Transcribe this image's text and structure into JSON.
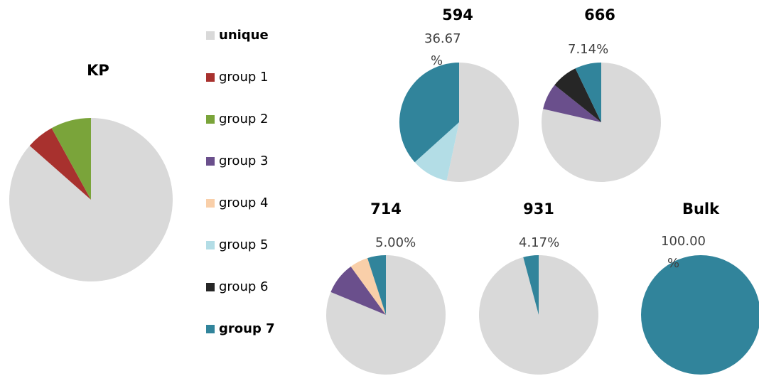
{
  "chart_data": [
    {
      "type": "pie",
      "title": "KP",
      "categories": [
        "unique",
        "group 1",
        "group 2",
        "group 3",
        "group 4",
        "group 5",
        "group 6",
        "group 7"
      ],
      "colors": [
        "#d9d9d9",
        "#a8312e",
        "#7aa43a",
        "#6a4f8c",
        "#f9cfa9",
        "#b3dde6",
        "#262626",
        "#31849b"
      ],
      "values": [
        86.5,
        5.5,
        8,
        0,
        0,
        0,
        0,
        0
      ],
      "value_labels": [
        null,
        null,
        null,
        null,
        null,
        null,
        null,
        null
      ]
    },
    {
      "type": "pie",
      "title": "594",
      "categories": [
        "unique",
        "group 1",
        "group 2",
        "group 3",
        "group 4",
        "group 5",
        "group 6",
        "group 7"
      ],
      "colors": [
        "#d9d9d9",
        "#a8312e",
        "#7aa43a",
        "#6a4f8c",
        "#f9cfa9",
        "#b3dde6",
        "#262626",
        "#31849b"
      ],
      "values": [
        53.33,
        0,
        0,
        0,
        0,
        10,
        0,
        36.67
      ],
      "value_labels": [
        null,
        null,
        null,
        null,
        null,
        null,
        null,
        "36.67%"
      ]
    },
    {
      "type": "pie",
      "title": "666",
      "categories": [
        "unique",
        "group 1",
        "group 2",
        "group 3",
        "group 4",
        "group 5",
        "group 6",
        "group 7"
      ],
      "colors": [
        "#d9d9d9",
        "#a8312e",
        "#7aa43a",
        "#6a4f8c",
        "#f9cfa9",
        "#b3dde6",
        "#262626",
        "#31849b"
      ],
      "values": [
        78.58,
        0,
        0,
        7.14,
        0,
        0,
        7.14,
        7.14
      ],
      "value_labels": [
        null,
        null,
        null,
        null,
        null,
        null,
        null,
        "7.14%"
      ]
    },
    {
      "type": "pie",
      "title": "714",
      "categories": [
        "unique",
        "group 1",
        "group 2",
        "group 3",
        "group 4",
        "group 5",
        "group 6",
        "group 7"
      ],
      "colors": [
        "#d9d9d9",
        "#a8312e",
        "#7aa43a",
        "#6a4f8c",
        "#f9cfa9",
        "#b3dde6",
        "#262626",
        "#31849b"
      ],
      "values": [
        81.25,
        0,
        0,
        8.75,
        5,
        0,
        0,
        5
      ],
      "value_labels": [
        null,
        null,
        null,
        null,
        null,
        null,
        null,
        "5.00%"
      ]
    },
    {
      "type": "pie",
      "title": "931",
      "categories": [
        "unique",
        "group 1",
        "group 2",
        "group 3",
        "group 4",
        "group 5",
        "group 6",
        "group 7"
      ],
      "colors": [
        "#d9d9d9",
        "#a8312e",
        "#7aa43a",
        "#6a4f8c",
        "#f9cfa9",
        "#b3dde6",
        "#262626",
        "#31849b"
      ],
      "values": [
        95.83,
        0,
        0,
        0,
        0,
        0,
        0,
        4.17
      ],
      "value_labels": [
        null,
        null,
        null,
        null,
        null,
        null,
        null,
        "4.17%"
      ]
    },
    {
      "type": "pie",
      "title": "Bulk",
      "categories": [
        "unique",
        "group 1",
        "group 2",
        "group 3",
        "group 4",
        "group 5",
        "group 6",
        "group 7"
      ],
      "colors": [
        "#d9d9d9",
        "#a8312e",
        "#7aa43a",
        "#6a4f8c",
        "#f9cfa9",
        "#b3dde6",
        "#262626",
        "#31849b"
      ],
      "values": [
        0,
        0,
        0,
        0,
        0,
        0,
        0,
        100
      ],
      "value_labels": [
        null,
        null,
        null,
        null,
        null,
        null,
        null,
        "100.00%"
      ]
    }
  ]
}
